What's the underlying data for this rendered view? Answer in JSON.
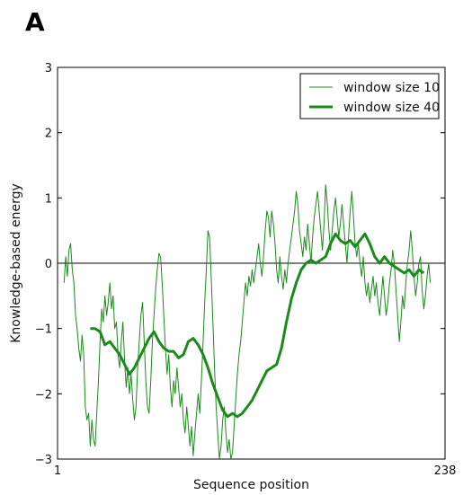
{
  "panel_label": "A",
  "chart_data": {
    "type": "line",
    "title": "",
    "xlabel": "Sequence position",
    "ylabel": "Knowledge-based energy",
    "xlim": [
      1,
      238
    ],
    "ylim": [
      -3,
      3
    ],
    "x_ticks": [
      1,
      238
    ],
    "y_ticks": [
      -3,
      -2,
      -1,
      0,
      1,
      2,
      3
    ],
    "y_tick_labels": [
      "−3",
      "−2",
      "−1",
      "0",
      "1",
      "2",
      "3"
    ],
    "reference_line_y": 0,
    "grid": false,
    "legend_position": "top-right",
    "color": "#1a8a1a",
    "series": [
      {
        "name": "window size 10",
        "style": "thin",
        "points": [
          [
            5,
            -0.3
          ],
          [
            6,
            0.1
          ],
          [
            7,
            -0.2
          ],
          [
            8,
            0.2
          ],
          [
            9,
            0.3
          ],
          [
            10,
            -0.1
          ],
          [
            11,
            -0.3
          ],
          [
            12,
            -0.8
          ],
          [
            13,
            -1.0
          ],
          [
            14,
            -1.3
          ],
          [
            15,
            -1.5
          ],
          [
            16,
            -1.1
          ],
          [
            17,
            -1.4
          ],
          [
            18,
            -2.2
          ],
          [
            19,
            -2.4
          ],
          [
            20,
            -2.3
          ],
          [
            21,
            -2.8
          ],
          [
            22,
            -2.4
          ],
          [
            23,
            -2.7
          ],
          [
            24,
            -2.8
          ],
          [
            25,
            -2.3
          ],
          [
            26,
            -1.8
          ],
          [
            27,
            -1.2
          ],
          [
            28,
            -0.7
          ],
          [
            29,
            -0.9
          ],
          [
            30,
            -0.5
          ],
          [
            31,
            -0.8
          ],
          [
            32,
            -0.6
          ],
          [
            33,
            -0.3
          ],
          [
            34,
            -0.7
          ],
          [
            35,
            -0.5
          ],
          [
            36,
            -1.0
          ],
          [
            37,
            -0.9
          ],
          [
            38,
            -1.4
          ],
          [
            39,
            -1.6
          ],
          [
            40,
            -1.2
          ],
          [
            41,
            -0.9
          ],
          [
            42,
            -1.5
          ],
          [
            43,
            -1.9
          ],
          [
            44,
            -1.6
          ],
          [
            45,
            -2.0
          ],
          [
            46,
            -1.7
          ],
          [
            47,
            -2.1
          ],
          [
            48,
            -2.4
          ],
          [
            49,
            -2.2
          ],
          [
            50,
            -1.6
          ],
          [
            51,
            -1.2
          ],
          [
            52,
            -0.8
          ],
          [
            53,
            -0.6
          ],
          [
            54,
            -1.2
          ],
          [
            55,
            -1.8
          ],
          [
            56,
            -2.2
          ],
          [
            57,
            -2.3
          ],
          [
            58,
            -1.8
          ],
          [
            59,
            -1.2
          ],
          [
            60,
            -0.8
          ],
          [
            61,
            -0.4
          ],
          [
            62,
            -0.1
          ],
          [
            63,
            0.15
          ],
          [
            64,
            0.1
          ],
          [
            65,
            -0.3
          ],
          [
            66,
            -0.8
          ],
          [
            67,
            -1.3
          ],
          [
            68,
            -1.7
          ],
          [
            69,
            -1.4
          ],
          [
            70,
            -1.9
          ],
          [
            71,
            -2.2
          ],
          [
            72,
            -1.8
          ],
          [
            73,
            -2.0
          ],
          [
            74,
            -1.6
          ],
          [
            75,
            -1.9
          ],
          [
            76,
            -2.2
          ],
          [
            77,
            -2.0
          ],
          [
            78,
            -2.4
          ],
          [
            79,
            -2.6
          ],
          [
            80,
            -2.2
          ],
          [
            81,
            -2.5
          ],
          [
            82,
            -2.8
          ],
          [
            83,
            -2.5
          ],
          [
            84,
            -2.95
          ],
          [
            85,
            -2.6
          ],
          [
            86,
            -2.3
          ],
          [
            87,
            -2.0
          ],
          [
            88,
            -2.3
          ],
          [
            89,
            -1.8
          ],
          [
            90,
            -1.2
          ],
          [
            91,
            -0.6
          ],
          [
            92,
            -0.1
          ],
          [
            93,
            0.5
          ],
          [
            94,
            0.4
          ],
          [
            95,
            -0.2
          ],
          [
            96,
            -0.9
          ],
          [
            97,
            -1.6
          ],
          [
            98,
            -2.2
          ],
          [
            99,
            -2.6
          ],
          [
            100,
            -3.0
          ],
          [
            101,
            -2.8
          ],
          [
            102,
            -2.4
          ],
          [
            103,
            -2.2
          ],
          [
            104,
            -2.6
          ],
          [
            105,
            -2.9
          ],
          [
            106,
            -2.7
          ],
          [
            107,
            -3.0
          ],
          [
            108,
            -2.9
          ],
          [
            109,
            -2.5
          ],
          [
            110,
            -2.1
          ],
          [
            111,
            -1.7
          ],
          [
            112,
            -1.4
          ],
          [
            113,
            -1.2
          ],
          [
            114,
            -0.9
          ],
          [
            115,
            -0.6
          ],
          [
            116,
            -0.3
          ],
          [
            117,
            -0.5
          ],
          [
            118,
            -0.2
          ],
          [
            119,
            -0.35
          ],
          [
            120,
            -0.1
          ],
          [
            121,
            -0.3
          ],
          [
            122,
            -0.1
          ],
          [
            123,
            0.1
          ],
          [
            124,
            0.3
          ],
          [
            125,
            0.0
          ],
          [
            126,
            -0.2
          ],
          [
            127,
            0.1
          ],
          [
            128,
            0.5
          ],
          [
            129,
            0.8
          ],
          [
            130,
            0.7
          ],
          [
            131,
            0.4
          ],
          [
            132,
            0.8
          ],
          [
            133,
            0.6
          ],
          [
            134,
            0.3
          ],
          [
            135,
            -0.1
          ],
          [
            136,
            -0.3
          ],
          [
            137,
            0.1
          ],
          [
            138,
            -0.2
          ],
          [
            139,
            -0.4
          ],
          [
            140,
            -0.1
          ],
          [
            141,
            -0.3
          ],
          [
            142,
            0.0
          ],
          [
            143,
            0.2
          ],
          [
            144,
            0.4
          ],
          [
            145,
            0.6
          ],
          [
            146,
            0.8
          ],
          [
            147,
            1.1
          ],
          [
            148,
            0.9
          ],
          [
            149,
            0.5
          ],
          [
            150,
            0.3
          ],
          [
            151,
            0.1
          ],
          [
            152,
            0.4
          ],
          [
            153,
            0.2
          ],
          [
            154,
            0.6
          ],
          [
            155,
            0.3
          ],
          [
            156,
            0.0
          ],
          [
            157,
            0.4
          ],
          [
            158,
            0.7
          ],
          [
            159,
            0.9
          ],
          [
            160,
            1.1
          ],
          [
            161,
            0.8
          ],
          [
            162,
            0.5
          ],
          [
            163,
            0.2
          ],
          [
            164,
            0.6
          ],
          [
            165,
            1.2
          ],
          [
            166,
            0.9
          ],
          [
            167,
            0.5
          ],
          [
            168,
            0.2
          ],
          [
            169,
            0.5
          ],
          [
            170,
            0.8
          ],
          [
            171,
            1.0
          ],
          [
            172,
            0.7
          ],
          [
            173,
            0.4
          ],
          [
            174,
            0.6
          ],
          [
            175,
            0.9
          ],
          [
            176,
            0.6
          ],
          [
            177,
            0.3
          ],
          [
            178,
            0.0
          ],
          [
            179,
            0.4
          ],
          [
            180,
            0.8
          ],
          [
            181,
            1.1
          ],
          [
            182,
            0.7
          ],
          [
            183,
            0.3
          ],
          [
            184,
            0.1
          ],
          [
            185,
            0.3
          ],
          [
            186,
            0.0
          ],
          [
            187,
            -0.2
          ],
          [
            188,
            0.1
          ],
          [
            189,
            -0.3
          ],
          [
            190,
            -0.5
          ],
          [
            191,
            -0.3
          ],
          [
            192,
            -0.6
          ],
          [
            193,
            -0.4
          ],
          [
            194,
            -0.2
          ],
          [
            195,
            -0.5
          ],
          [
            196,
            -0.3
          ],
          [
            197,
            -0.6
          ],
          [
            198,
            -0.8
          ],
          [
            199,
            -0.5
          ],
          [
            200,
            -0.2
          ],
          [
            201,
            -0.5
          ],
          [
            202,
            -0.8
          ],
          [
            203,
            -0.6
          ],
          [
            204,
            -0.3
          ],
          [
            205,
            -0.1
          ],
          [
            206,
            0.2
          ],
          [
            207,
            0.0
          ],
          [
            208,
            -0.4
          ],
          [
            209,
            -0.8
          ],
          [
            210,
            -1.2
          ],
          [
            211,
            -0.9
          ],
          [
            212,
            -0.5
          ],
          [
            213,
            -0.7
          ],
          [
            214,
            -0.3
          ],
          [
            215,
            0.0
          ],
          [
            216,
            0.2
          ],
          [
            217,
            0.5
          ],
          [
            218,
            0.2
          ],
          [
            219,
            -0.2
          ],
          [
            220,
            -0.5
          ],
          [
            221,
            -0.3
          ],
          [
            222,
            0.0
          ],
          [
            223,
            0.1
          ],
          [
            224,
            -0.4
          ],
          [
            225,
            -0.7
          ],
          [
            226,
            -0.5
          ],
          [
            227,
            -0.2
          ],
          [
            228,
            0.0
          ],
          [
            229,
            -0.3
          ]
        ]
      },
      {
        "name": "window size 40",
        "style": "thick",
        "points": [
          [
            21,
            -1.0
          ],
          [
            24,
            -1.0
          ],
          [
            27,
            -1.05
          ],
          [
            30,
            -1.25
          ],
          [
            33,
            -1.2
          ],
          [
            36,
            -1.3
          ],
          [
            39,
            -1.4
          ],
          [
            42,
            -1.55
          ],
          [
            45,
            -1.7
          ],
          [
            48,
            -1.6
          ],
          [
            51,
            -1.45
          ],
          [
            54,
            -1.3
          ],
          [
            57,
            -1.15
          ],
          [
            60,
            -1.05
          ],
          [
            63,
            -1.2
          ],
          [
            66,
            -1.3
          ],
          [
            69,
            -1.35
          ],
          [
            72,
            -1.35
          ],
          [
            75,
            -1.45
          ],
          [
            78,
            -1.4
          ],
          [
            81,
            -1.2
          ],
          [
            84,
            -1.15
          ],
          [
            87,
            -1.25
          ],
          [
            90,
            -1.4
          ],
          [
            93,
            -1.6
          ],
          [
            96,
            -1.85
          ],
          [
            99,
            -2.05
          ],
          [
            102,
            -2.25
          ],
          [
            105,
            -2.35
          ],
          [
            108,
            -2.3
          ],
          [
            111,
            -2.35
          ],
          [
            114,
            -2.3
          ],
          [
            117,
            -2.2
          ],
          [
            120,
            -2.1
          ],
          [
            123,
            -1.95
          ],
          [
            126,
            -1.8
          ],
          [
            129,
            -1.65
          ],
          [
            132,
            -1.6
          ],
          [
            135,
            -1.55
          ],
          [
            138,
            -1.3
          ],
          [
            141,
            -0.9
          ],
          [
            144,
            -0.55
          ],
          [
            147,
            -0.3
          ],
          [
            150,
            -0.1
          ],
          [
            153,
            0.0
          ],
          [
            156,
            0.05
          ],
          [
            159,
            0.0
          ],
          [
            162,
            0.05
          ],
          [
            165,
            0.1
          ],
          [
            168,
            0.3
          ],
          [
            171,
            0.45
          ],
          [
            174,
            0.35
          ],
          [
            177,
            0.3
          ],
          [
            180,
            0.35
          ],
          [
            183,
            0.25
          ],
          [
            186,
            0.35
          ],
          [
            189,
            0.45
          ],
          [
            192,
            0.3
          ],
          [
            195,
            0.1
          ],
          [
            198,
            0.0
          ],
          [
            201,
            0.1
          ],
          [
            204,
            0.0
          ],
          [
            207,
            -0.05
          ],
          [
            210,
            -0.1
          ],
          [
            213,
            -0.15
          ],
          [
            216,
            -0.1
          ],
          [
            219,
            -0.2
          ],
          [
            222,
            -0.1
          ],
          [
            225,
            -0.15
          ]
        ]
      }
    ]
  }
}
